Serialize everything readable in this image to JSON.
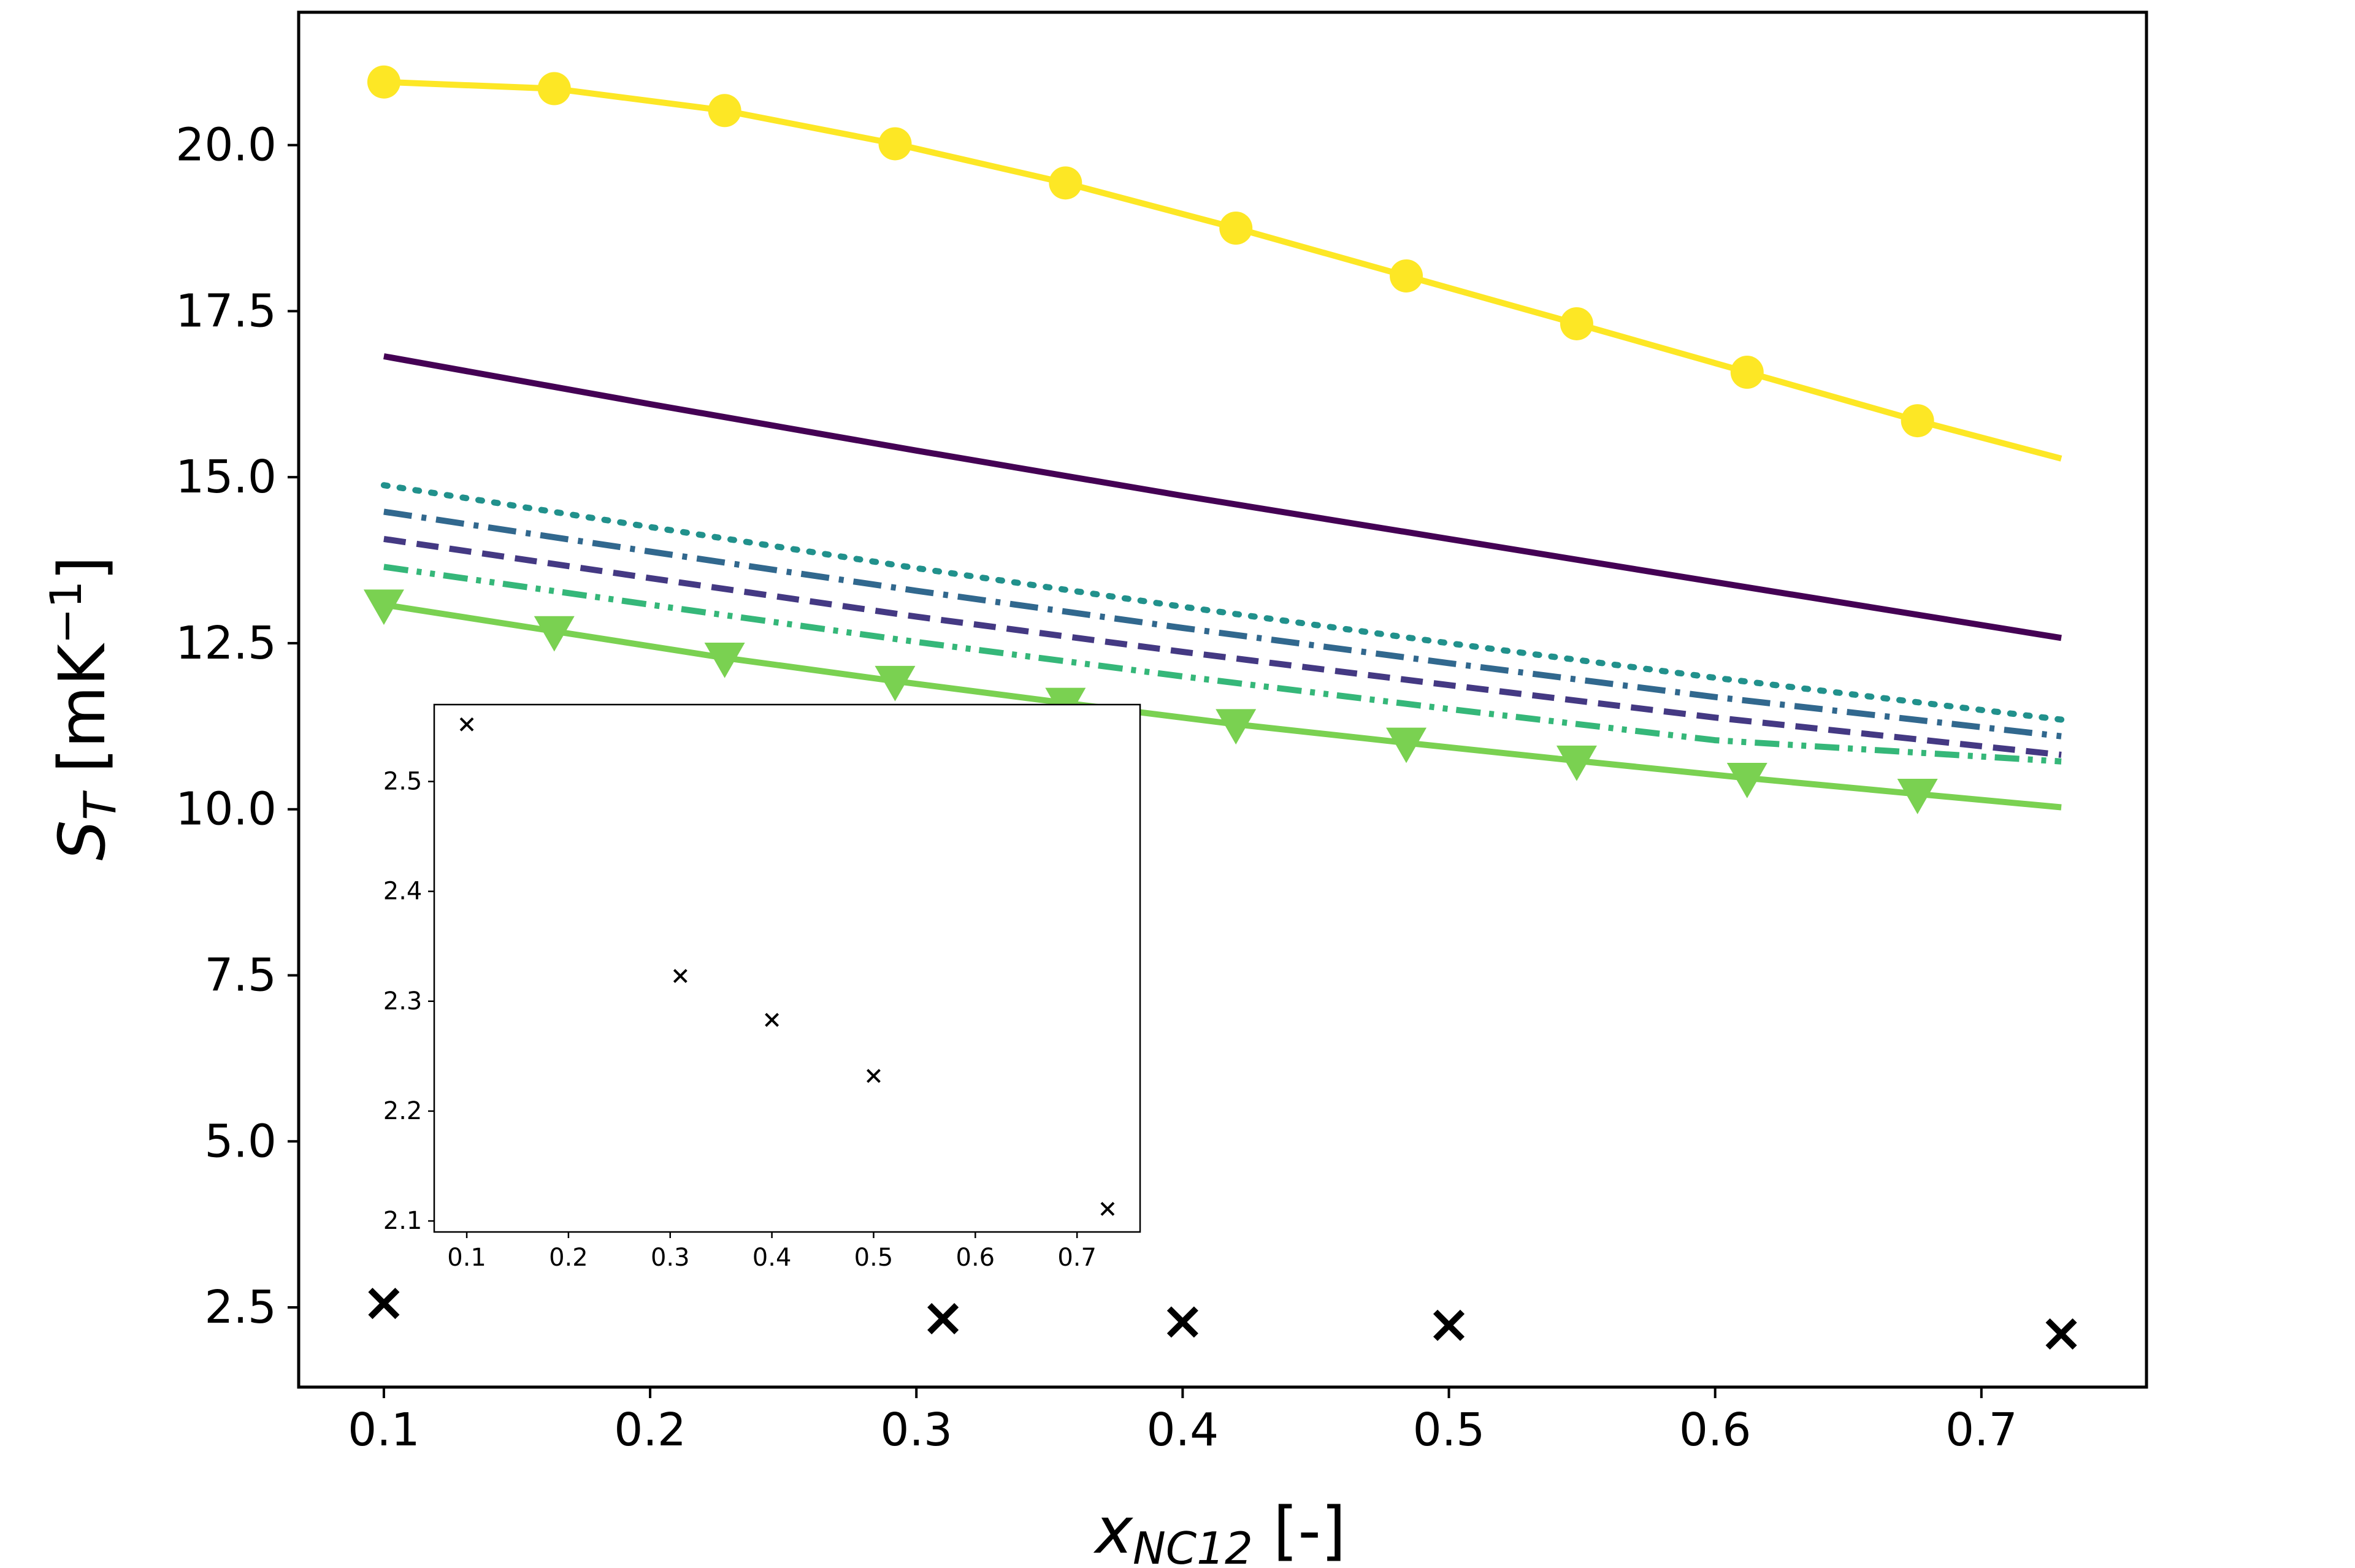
{
  "chart_data": [
    {
      "type": "line",
      "xlabel": {
        "main": "x",
        "sub": "NC12",
        "unit": " [-]"
      },
      "ylabel": {
        "main": "S",
        "sub": "T",
        "unit_pre": " [mK",
        "unit_sup": "−1",
        "unit_post": "]"
      },
      "xlim": [
        0.068,
        0.762
      ],
      "ylim": [
        1.3,
        22.0
      ],
      "x_ticks": [
        0.1,
        0.2,
        0.3,
        0.4,
        0.5,
        0.6,
        0.7
      ],
      "x_tick_labels": [
        "0.1",
        "0.2",
        "0.3",
        "0.4",
        "0.5",
        "0.6",
        "0.7"
      ],
      "y_ticks": [
        2.5,
        5.0,
        7.5,
        10.0,
        12.5,
        15.0,
        17.5,
        20.0
      ],
      "y_tick_labels": [
        "2.5",
        "5.0",
        "7.5",
        "10.0",
        "12.5",
        "15.0",
        "17.5",
        "20.0"
      ],
      "grid": false,
      "series": [
        {
          "color": "#fde725",
          "style": "solid",
          "marker": "circle",
          "x": [
            0.1,
            0.164,
            0.228,
            0.292,
            0.356,
            0.42,
            0.484,
            0.548,
            0.612,
            0.676,
            0.73
          ],
          "y": [
            20.95,
            20.85,
            20.52,
            20.02,
            19.43,
            18.75,
            18.03,
            17.31,
            16.58,
            15.85,
            15.28
          ],
          "marker_x": [
            0.1,
            0.164,
            0.228,
            0.292,
            0.356,
            0.42,
            0.484,
            0.548,
            0.612,
            0.676
          ],
          "marker_y": [
            20.95,
            20.85,
            20.52,
            20.02,
            19.43,
            18.75,
            18.03,
            17.31,
            16.58,
            15.85
          ]
        },
        {
          "color": "#440154",
          "style": "solid",
          "marker": "none",
          "x": [
            0.1,
            0.2,
            0.3,
            0.4,
            0.5,
            0.6,
            0.73
          ],
          "y": [
            16.82,
            16.1,
            15.4,
            14.72,
            14.07,
            13.42,
            12.58
          ]
        },
        {
          "color": "#21918c",
          "style": "dotted",
          "marker": "none",
          "x": [
            0.1,
            0.2,
            0.3,
            0.4,
            0.5,
            0.6,
            0.73
          ],
          "y": [
            14.88,
            14.25,
            13.63,
            13.05,
            12.5,
            11.98,
            11.35
          ]
        },
        {
          "color": "#31688e",
          "style": "dashdot",
          "marker": "none",
          "x": [
            0.1,
            0.2,
            0.3,
            0.4,
            0.5,
            0.6,
            0.73
          ],
          "y": [
            14.48,
            13.88,
            13.29,
            12.73,
            12.2,
            11.69,
            11.1
          ]
        },
        {
          "color": "#443983",
          "style": "dashed",
          "marker": "none",
          "x": [
            0.1,
            0.2,
            0.3,
            0.4,
            0.5,
            0.6,
            0.73
          ],
          "y": [
            14.07,
            13.48,
            12.9,
            12.37,
            11.87,
            11.38,
            10.82
          ]
        },
        {
          "color": "#35b779",
          "style": "dashdotdot",
          "marker": "none",
          "x": [
            0.1,
            0.2,
            0.3,
            0.4,
            0.5,
            0.6,
            0.73
          ],
          "y": [
            13.65,
            13.08,
            12.52,
            12.0,
            11.51,
            11.04,
            10.72
          ]
        },
        {
          "color": "#7ad151",
          "style": "solid",
          "marker": "triangle_down",
          "x": [
            0.1,
            0.164,
            0.228,
            0.292,
            0.356,
            0.42,
            0.484,
            0.548,
            0.612,
            0.676,
            0.73
          ],
          "y": [
            13.08,
            12.68,
            12.28,
            11.93,
            11.6,
            11.28,
            11.0,
            10.73,
            10.47,
            10.23,
            10.03
          ],
          "marker_x": [
            0.1,
            0.164,
            0.228,
            0.292,
            0.356,
            0.42,
            0.484,
            0.548,
            0.612,
            0.676
          ],
          "marker_y": [
            13.08,
            12.68,
            12.28,
            11.93,
            11.6,
            11.28,
            11.0,
            10.73,
            10.47,
            10.23
          ]
        },
        {
          "color": "#000000",
          "style": "none",
          "marker": "x",
          "x": [
            0.1,
            0.31,
            0.4,
            0.5,
            0.73
          ],
          "y": [
            2.56,
            2.33,
            2.28,
            2.23,
            2.1
          ]
        }
      ]
    },
    {
      "type": "scatter",
      "xlim": [
        0.068,
        0.762
      ],
      "ylim": [
        2.09,
        2.57
      ],
      "x_ticks": [
        0.1,
        0.2,
        0.3,
        0.4,
        0.5,
        0.6,
        0.7
      ],
      "x_tick_labels": [
        "0.1",
        "0.2",
        "0.3",
        "0.4",
        "0.5",
        "0.6",
        "0.7"
      ],
      "y_ticks": [
        2.1,
        2.2,
        2.3,
        2.4,
        2.5
      ],
      "y_tick_labels": [
        "2.1",
        "2.2",
        "2.3",
        "2.4",
        "2.5"
      ],
      "grid": false,
      "series": [
        {
          "color": "#000000",
          "style": "none",
          "marker": "x",
          "x": [
            0.1,
            0.31,
            0.4,
            0.5,
            0.73
          ],
          "y": [
            2.552,
            2.323,
            2.283,
            2.232,
            2.111
          ]
        }
      ]
    }
  ]
}
